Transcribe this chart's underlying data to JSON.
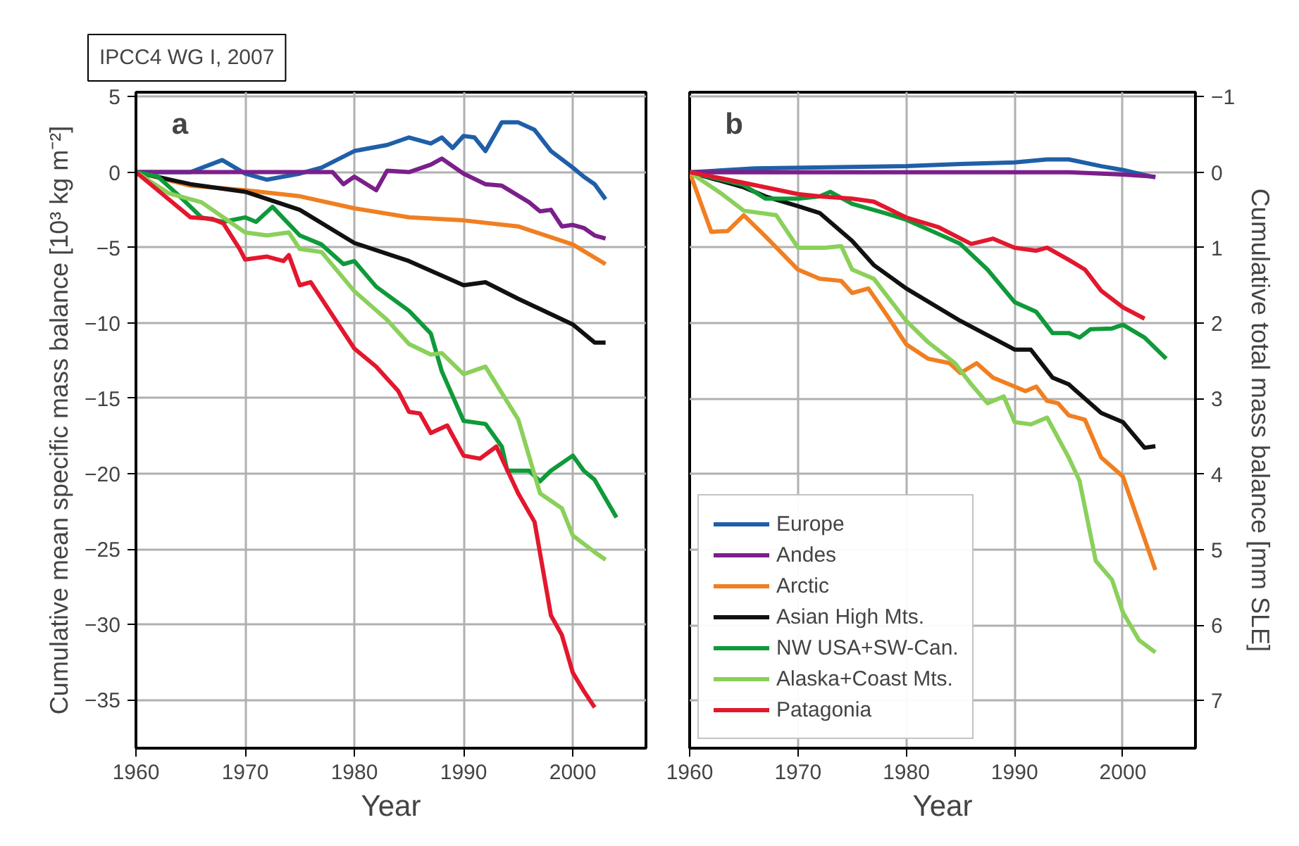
{
  "chart_data": [
    {
      "type": "line",
      "title": "IPCC4 WG I, 2007",
      "xlabel": "Year",
      "ylabel": "Cumulative mean specific mass balance [10³ kg m⁻²]",
      "annotations": [
        "a"
      ],
      "xlim": [
        1960,
        2006.7
      ],
      "ylim": [
        -38.2,
        5.3
      ],
      "xticks": [
        1960,
        1970,
        1980,
        1990,
        2000
      ],
      "yticks": [
        -35,
        -30,
        -25,
        -20,
        -15,
        -10,
        -5,
        0,
        5
      ],
      "grid": true,
      "series": [
        {
          "color": "#1f5fa8",
          "x": [
            1960,
            1965,
            1967.9,
            1970,
            1972,
            1975,
            1977,
            1980,
            1983,
            1985,
            1987,
            1988,
            1989,
            1990,
            1991,
            1992,
            1993.5,
            1995,
            1996.5,
            1998,
            2000,
            2001,
            2002,
            2003
          ],
          "values": [
            0,
            0,
            0.8,
            -0.1,
            -0.5,
            -0.1,
            0.3,
            1.4,
            1.8,
            2.3,
            1.9,
            2.3,
            1.6,
            2.4,
            2.3,
            1.4,
            3.3,
            3.3,
            2.8,
            1.4,
            0.3,
            -0.3,
            -0.8,
            -1.8
          ]
        },
        {
          "color": "#7b1f8a",
          "x": [
            1960,
            1978,
            1979,
            1980,
            1982,
            1983,
            1985,
            1987,
            1988,
            1990,
            1992,
            1993.5,
            1996,
            1997,
            1998,
            1999,
            2000,
            2001,
            2002,
            2003
          ],
          "values": [
            0,
            0,
            -0.8,
            -0.3,
            -1.2,
            0.1,
            0,
            0.5,
            0.9,
            -0.1,
            -0.8,
            -0.9,
            -2.0,
            -2.6,
            -2.5,
            -3.6,
            -3.5,
            -3.7,
            -4.2,
            -4.4
          ]
        },
        {
          "color": "#f07f22",
          "x": [
            1960,
            1965,
            1970,
            1975,
            1980,
            1985,
            1990,
            1995,
            2000,
            2003
          ],
          "values": [
            0,
            -0.9,
            -1.2,
            -1.6,
            -2.4,
            -3.0,
            -3.2,
            -3.6,
            -4.8,
            -6.1
          ]
        },
        {
          "color": "#111111",
          "x": [
            1960,
            1965,
            1970,
            1975,
            1980,
            1985,
            1990,
            1992,
            1995,
            2000,
            2002,
            2003
          ],
          "values": [
            0,
            -0.8,
            -1.3,
            -2.5,
            -4.7,
            -5.9,
            -7.5,
            -7.3,
            -8.4,
            -10.1,
            -11.3,
            -11.3
          ]
        },
        {
          "color": "#0f9a3a",
          "x": [
            1960,
            1962,
            1964,
            1966,
            1968,
            1970,
            1971,
            1972.5,
            1975,
            1977,
            1979,
            1980,
            1982,
            1985,
            1987,
            1988,
            1990,
            1992,
            1993.5,
            1994,
            1996,
            1997,
            1998,
            2000,
            2001,
            2002,
            2004
          ],
          "values": [
            0,
            -0.3,
            -1.6,
            -3.0,
            -3.3,
            -3.0,
            -3.3,
            -2.3,
            -4.2,
            -4.8,
            -6.1,
            -5.9,
            -7.6,
            -9.2,
            -10.7,
            -13.2,
            -16.5,
            -16.7,
            -18.2,
            -19.8,
            -19.8,
            -20.5,
            -19.8,
            -18.8,
            -19.8,
            -20.4,
            -22.9
          ]
        },
        {
          "color": "#8ad05a",
          "x": [
            1960,
            1963,
            1966,
            1970,
            1972,
            1974,
            1975,
            1977,
            1980,
            1983,
            1985,
            1987,
            1988,
            1990,
            1992,
            1995,
            1997,
            1999,
            2000,
            2002,
            2003
          ],
          "values": [
            0,
            -1.4,
            -2.0,
            -4.0,
            -4.2,
            -4.0,
            -5.1,
            -5.3,
            -7.9,
            -9.8,
            -11.4,
            -12.1,
            -12.0,
            -13.4,
            -12.9,
            -16.4,
            -21.3,
            -22.3,
            -24.1,
            -25.2,
            -25.7
          ]
        },
        {
          "color": "#e3172e",
          "x": [
            1960,
            1962,
            1965,
            1967,
            1968,
            1969.5,
            1970,
            1972,
            1973.5,
            1974,
            1975,
            1976,
            1978,
            1980,
            1982,
            1984,
            1985,
            1986,
            1987,
            1988.5,
            1990,
            1991.5,
            1993,
            1995,
            1996.5,
            1998,
            1999,
            2000,
            2001,
            2002
          ],
          "values": [
            0,
            -1.2,
            -3.0,
            -3.1,
            -3.4,
            -5.1,
            -5.8,
            -5.6,
            -5.9,
            -5.5,
            -7.5,
            -7.3,
            -9.5,
            -11.7,
            -12.9,
            -14.5,
            -15.9,
            -16.0,
            -17.3,
            -16.8,
            -18.8,
            -19.0,
            -18.2,
            -21.3,
            -23.2,
            -29.4,
            -30.7,
            -33.2,
            -34.4,
            -35.5
          ]
        }
      ]
    },
    {
      "type": "line",
      "xlabel": "Year",
      "ylabel": "Cumulative total mass balance [mm SLE]",
      "annotations": [
        "b"
      ],
      "xlim": [
        1960,
        2006.7
      ],
      "ylim": [
        7.63,
        -1.06
      ],
      "xticks": [
        1960,
        1970,
        1980,
        1990,
        2000
      ],
      "yticks": [
        -1,
        0,
        1,
        2,
        3,
        4,
        5,
        6,
        7
      ],
      "grid": true,
      "legend": "bottom left",
      "series": [
        {
          "name": "Europe",
          "color": "#1f5fa8",
          "x": [
            1960,
            1966,
            1980,
            1985,
            1990,
            1993,
            1995,
            1998,
            2000,
            2003
          ],
          "values": [
            0,
            -0.05,
            -0.08,
            -0.11,
            -0.13,
            -0.17,
            -0.17,
            -0.08,
            -0.03,
            0.07
          ]
        },
        {
          "name": "Andes",
          "color": "#7b1f8a",
          "x": [
            1960,
            1980,
            1995,
            2000,
            2003
          ],
          "values": [
            0,
            0,
            0,
            0.03,
            0.06
          ]
        },
        {
          "name": "Arctic",
          "color": "#f07f22",
          "x": [
            1960,
            1962,
            1963.5,
            1965,
            1967,
            1970,
            1972,
            1974,
            1975,
            1976.5,
            1978,
            1980,
            1982,
            1984,
            1985,
            1986.5,
            1988,
            1990,
            1991,
            1992,
            1993,
            1994,
            1995,
            1996.5,
            1998,
            2000,
            2001.5,
            2003
          ],
          "values": [
            0,
            0.79,
            0.78,
            0.57,
            0.85,
            1.29,
            1.41,
            1.44,
            1.6,
            1.54,
            1.85,
            2.28,
            2.47,
            2.53,
            2.66,
            2.53,
            2.72,
            2.84,
            2.9,
            2.84,
            3.03,
            3.06,
            3.22,
            3.28,
            3.78,
            4.03,
            4.65,
            5.27
          ]
        },
        {
          "name": "Asian High Mts.",
          "color": "#111111",
          "x": [
            1960,
            1965,
            1967,
            1970,
            1972,
            1975,
            1977,
            1980,
            1985,
            1990,
            1991.5,
            1993.5,
            1995,
            1998,
            2000,
            2002,
            2003
          ],
          "values": [
            0,
            0.2,
            0.32,
            0.45,
            0.54,
            0.91,
            1.23,
            1.54,
            1.97,
            2.35,
            2.35,
            2.72,
            2.81,
            3.19,
            3.31,
            3.65,
            3.63
          ]
        },
        {
          "name": "NW USA+SW-Can.",
          "color": "#0f9a3a",
          "x": [
            1960,
            1965,
            1967,
            1970,
            1972,
            1973,
            1975,
            1978,
            1980,
            1983,
            1985,
            1987.5,
            1990,
            1992,
            1993.5,
            1995,
            1996,
            1997,
            1999,
            2000,
            2002,
            2004
          ],
          "values": [
            0,
            0.17,
            0.35,
            0.35,
            0.32,
            0.26,
            0.42,
            0.54,
            0.63,
            0.82,
            0.95,
            1.29,
            1.72,
            1.85,
            2.13,
            2.13,
            2.19,
            2.08,
            2.07,
            2.02,
            2.19,
            2.47
          ]
        },
        {
          "name": "Alaska+Coast Mts.",
          "color": "#8ad05a",
          "x": [
            1960,
            1963,
            1965,
            1968,
            1970,
            1972.5,
            1974,
            1975,
            1977,
            1980,
            1982,
            1984.5,
            1986,
            1987.5,
            1989,
            1990,
            1991.5,
            1993,
            1995,
            1996,
            1997.5,
            1999,
            2000,
            2001.5,
            2003
          ],
          "values": [
            0,
            0.29,
            0.51,
            0.57,
            1.0,
            1.0,
            0.98,
            1.29,
            1.41,
            1.97,
            2.25,
            2.53,
            2.81,
            3.06,
            2.97,
            3.31,
            3.34,
            3.25,
            3.78,
            4.09,
            5.15,
            5.4,
            5.83,
            6.2,
            6.36
          ]
        },
        {
          "name": "Patagonia",
          "color": "#e3172e",
          "x": [
            1960,
            1965,
            1970,
            1972,
            1975,
            1977,
            1980,
            1983,
            1986,
            1988,
            1990,
            1992,
            1993,
            1995,
            1996.5,
            1998,
            2000,
            2002
          ],
          "values": [
            0,
            0.14,
            0.29,
            0.32,
            0.35,
            0.39,
            0.6,
            0.73,
            0.95,
            0.88,
            1.0,
            1.04,
            1.0,
            1.16,
            1.29,
            1.57,
            1.79,
            1.94
          ]
        }
      ]
    }
  ]
}
